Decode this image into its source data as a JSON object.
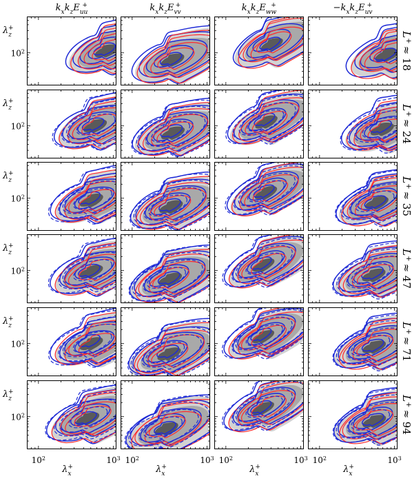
{
  "chart_data": {
    "type": "contour",
    "columns": [
      "k_x k_z E_uu^+",
      "k_x k_z E_vv^+",
      "k_x k_z E_ww^+",
      "-k_x k_z E_uv^+"
    ],
    "column_titles": [
      {
        "pre": "k",
        "s1": "x",
        "mid": "k",
        "s2": "z",
        "E": "E",
        "sub": "uu",
        "sup": "+",
        "neg": ""
      },
      {
        "pre": "k",
        "s1": "x",
        "mid": "k",
        "s2": "z",
        "E": "E",
        "sub": "vv",
        "sup": "+",
        "neg": ""
      },
      {
        "pre": "k",
        "s1": "x",
        "mid": "k",
        "s2": "z",
        "E": "E",
        "sub": "ww",
        "sup": "+",
        "neg": ""
      },
      {
        "pre": "k",
        "s1": "x",
        "mid": "k",
        "s2": "z",
        "E": "E",
        "sub": "uv",
        "sup": "+",
        "neg": "−"
      }
    ],
    "rows": [
      {
        "label": "L+ ≈ 18",
        "L": "L",
        "approx": "≈ 18",
        "value": 18,
        "dashed": false
      },
      {
        "label": "L+ ≈ 24",
        "L": "L",
        "approx": "≈ 24",
        "value": 24,
        "dashed": true
      },
      {
        "label": "L+ ≈ 35",
        "L": "L",
        "approx": "≈ 35",
        "value": 35,
        "dashed": true
      },
      {
        "label": "L+ ≈ 47",
        "L": "L",
        "approx": "≈ 47",
        "value": 47,
        "dashed": true
      },
      {
        "label": "L+ ≈ 71",
        "L": "L",
        "approx": "≈ 71",
        "value": 71,
        "dashed": true
      },
      {
        "label": "L+ ≈ 94",
        "L": "L",
        "approx": "≈ 94",
        "value": 94,
        "dashed": true
      }
    ],
    "xlabel": {
      "sym": "λ",
      "sub": "x",
      "sup": "+"
    },
    "ylabel": {
      "sym": "λ",
      "sub": "z",
      "sup": "+"
    },
    "x_scale": "log",
    "y_scale": "log",
    "xlim": [
      70,
      1100
    ],
    "ylim": [
      20,
      600
    ],
    "x_ticks": [
      {
        "value": 100,
        "base": "10",
        "exp": "2"
      },
      {
        "value": 1000,
        "base": "10",
        "exp": "3"
      }
    ],
    "y_ticks": [
      {
        "value": 100,
        "base": "10",
        "exp": "2"
      }
    ],
    "colors": {
      "fill_light": "#d3d3d3",
      "fill_mid": "#a9a9a9",
      "fill_dark": "#5a5a5a",
      "blue": "#1f2bd6",
      "red": "#ff2a2a"
    },
    "series": [
      {
        "name": "",
        "style": "grey filled contours"
      },
      {
        "name": "",
        "style": "blue solid line contours"
      },
      {
        "name": "",
        "style": "red solid line contours"
      },
      {
        "name": "",
        "style": "blue dashed line contours"
      }
    ],
    "panel_peaks": [
      [
        [
          700,
          110
        ],
        [
          300,
          70
        ],
        [
          350,
          150
        ],
        [
          700,
          90
        ]
      ],
      [
        [
          500,
          100
        ],
        [
          300,
          70
        ],
        [
          300,
          120
        ],
        [
          600,
          85
        ]
      ],
      [
        [
          450,
          90
        ],
        [
          280,
          65
        ],
        [
          300,
          130
        ],
        [
          500,
          80
        ]
      ],
      [
        [
          450,
          95
        ],
        [
          270,
          65
        ],
        [
          280,
          130
        ],
        [
          450,
          80
        ]
      ],
      [
        [
          450,
          100
        ],
        [
          260,
          60
        ],
        [
          280,
          140
        ],
        [
          450,
          85
        ]
      ],
      [
        [
          400,
          90
        ],
        [
          240,
          55
        ],
        [
          280,
          150
        ],
        [
          450,
          80
        ]
      ]
    ]
  }
}
